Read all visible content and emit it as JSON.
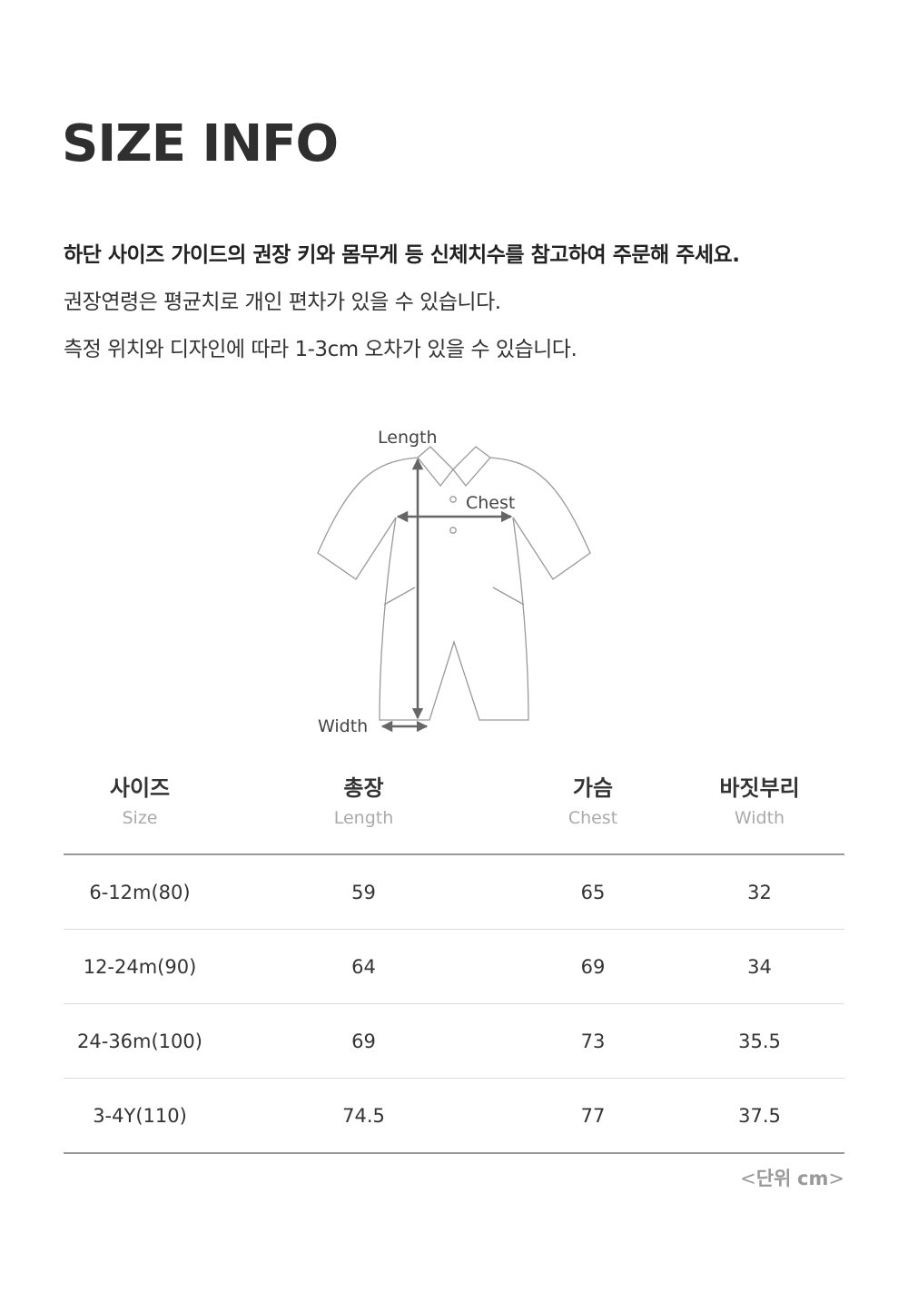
{
  "title": "SIZE INFO",
  "notes": [
    "하단 사이즈 가이드의 권장 키와 몸무게 등 신체치수를 참고하여 주문해 주세요.",
    "권장연령은 평균치로 개인 편차가 있을 수 있습니다.",
    "측정 위치와 디자인에 따라 1-3cm 오차가 있을 수 있습니다."
  ],
  "diagram": {
    "length_label": "Length",
    "chest_label": "Chest",
    "width_label": "Width"
  },
  "table": {
    "headers": [
      {
        "ko": "사이즈",
        "en": "Size"
      },
      {
        "ko": "총장",
        "en": "Length"
      },
      {
        "ko": "가슴",
        "en": "Chest"
      },
      {
        "ko": "바짓부리",
        "en": "Width"
      }
    ],
    "rows": [
      [
        "6-12m(80)",
        "59",
        "65",
        "32"
      ],
      [
        "12-24m(90)",
        "64",
        "69",
        "34"
      ],
      [
        "24-36m(100)",
        "69",
        "73",
        "35.5"
      ],
      [
        "3-4Y(110)",
        "74.5",
        "77",
        "37.5"
      ]
    ]
  },
  "unit": {
    "open": "<",
    "label": "단위",
    "unit": "cm",
    "close": ">"
  }
}
